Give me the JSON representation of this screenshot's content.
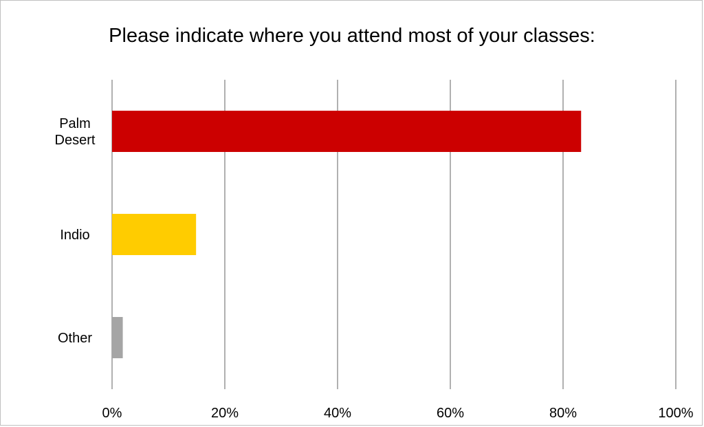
{
  "chart_data": {
    "type": "bar",
    "orientation": "horizontal",
    "title": "Please indicate where you attend most of your classes:",
    "categories": [
      "Palm Desert",
      "Indio",
      "Other"
    ],
    "category_lines": [
      [
        "Palm",
        "Desert"
      ],
      [
        "Indio"
      ],
      [
        "Other"
      ]
    ],
    "values": [
      83.2,
      14.9,
      1.9
    ],
    "colors": [
      "#cc0000",
      "#ffcc00",
      "#a5a5a5"
    ],
    "xlim": [
      0,
      100
    ],
    "xticks": [
      0,
      20,
      40,
      60,
      80,
      100
    ],
    "tick_labels": [
      "0%",
      "20%",
      "40%",
      "60%",
      "80%",
      "100%"
    ],
    "grid": true,
    "legend": "none",
    "xlabel": "",
    "ylabel": ""
  }
}
